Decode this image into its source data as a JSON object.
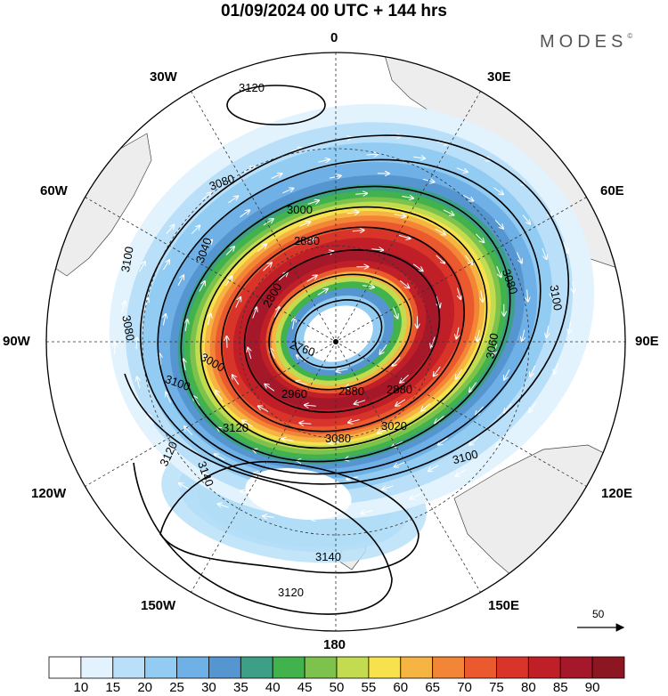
{
  "title": "01/09/2024  00 UTC  + 144 hrs",
  "brand": "MODES",
  "brand_mark": "©",
  "longitude_labels": {
    "top": "0",
    "top_left": "30W",
    "top_right": "30E",
    "upper_left": "60W",
    "upper_right": "60E",
    "left": "90W",
    "right": "90E",
    "lower_left": "120W",
    "lower_right": "120E",
    "bottom_left": "150W",
    "bottom_right": "150E",
    "bottom": "180"
  },
  "contour_labels": {
    "c3120_n": "3120",
    "c3080_a": "3080",
    "c3000_a": "3000",
    "c2880_a": "2880",
    "c3040_a": "3040",
    "c3100_w": "3100",
    "c2800_a": "2800",
    "c3080_w": "3080",
    "c2760_a": "2760",
    "c3080_e": "3080",
    "c3100_e": "3100",
    "c3060_e": "3060",
    "c3000_sw": "3000",
    "c2960_a": "2960",
    "c2880_b": "2880",
    "c2880_c": "2880",
    "c3020_a": "3020",
    "c3100_sw": "3100",
    "c3120_sw": "3120",
    "c3080_s": "3080",
    "c3100_se": "3100",
    "c3120_s": "3120",
    "c3140_a": "3140",
    "c3140_b": "3140",
    "c3120_b": "3120"
  },
  "colorbar": {
    "ticks": [
      "10",
      "15",
      "20",
      "25",
      "30",
      "35",
      "40",
      "45",
      "50",
      "55",
      "60",
      "65",
      "70",
      "75",
      "80",
      "85",
      "90"
    ],
    "colors": [
      "#ffffff",
      "#e2f3fd",
      "#b9e0f8",
      "#92ccf2",
      "#6fb1e6",
      "#5596d0",
      "#3c9f86",
      "#41b24c",
      "#7cc24c",
      "#c3db4f",
      "#f7e24d",
      "#f6b443",
      "#f28636",
      "#ea5a2e",
      "#d9342a",
      "#c01f28",
      "#a5182a",
      "#8c1722"
    ]
  },
  "reference_vector": "50"
}
